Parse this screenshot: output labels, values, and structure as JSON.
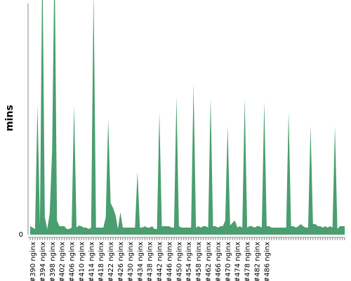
{
  "chart_data": {
    "type": "area",
    "ylabel": "mins",
    "ylim": [
      0,
      330
    ],
    "y_ticks": [
      0
    ],
    "color": "#4a9e6f",
    "x_labels": [
      "#390 nginx",
      "#394 nginx",
      "#398 nginx",
      "#402 nginx",
      "#406 nginx",
      "#410 nginx",
      "#414 nginx",
      "#418 nginx",
      "#422 nginx",
      "#426 nginx",
      "#430 nginx",
      "#434 nginx",
      "#438 nginx",
      "#442 nginx",
      "#446 nginx",
      "#450 nginx",
      "#454 nginx",
      "#458 nginx",
      "#462 nginx",
      "#466 nginx",
      "#470 nginx",
      "#474 nginx",
      "#478 nginx",
      "#482 nginx",
      "#486 nginx"
    ],
    "x_start": 389,
    "values": [
      12,
      10,
      8,
      185,
      12,
      400,
      25,
      8,
      30,
      120,
      400,
      20,
      12,
      12,
      12,
      8,
      8,
      10,
      185,
      10,
      13,
      12,
      10,
      10,
      8,
      10,
      350,
      10,
      10,
      10,
      10,
      25,
      165,
      45,
      38,
      28,
      8,
      32,
      10,
      10,
      10,
      10,
      10,
      10,
      90,
      10,
      10,
      12,
      10,
      10,
      12,
      8,
      8,
      175,
      12,
      12,
      12,
      12,
      10,
      10,
      197,
      12,
      10,
      10,
      10,
      10,
      10,
      215,
      10,
      12,
      10,
      12,
      12,
      10,
      195,
      12,
      12,
      10,
      12,
      12,
      20,
      155,
      13,
      17,
      20,
      10,
      12,
      10,
      195,
      10,
      12,
      12,
      10,
      12,
      12,
      10,
      190,
      12,
      12,
      10,
      10,
      10,
      10,
      10,
      10,
      10,
      175,
      12,
      12,
      10,
      12,
      15,
      12,
      10,
      10,
      155,
      15,
      15,
      12,
      12,
      10,
      12,
      10,
      12,
      10,
      155,
      8,
      12,
      12,
      12
    ]
  }
}
